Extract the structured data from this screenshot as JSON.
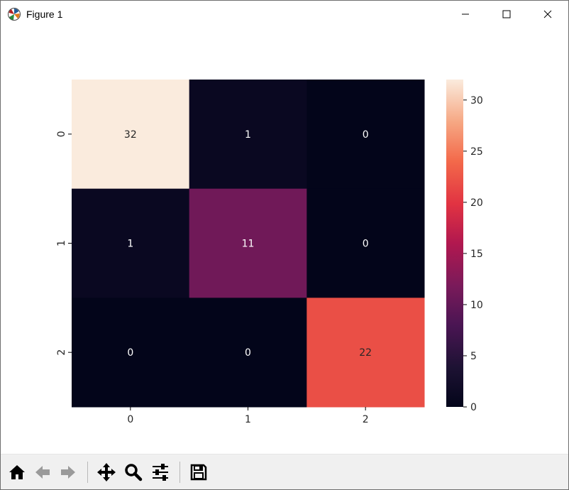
{
  "window": {
    "title": "Figure 1",
    "icon": "matplotlib-logo-icon",
    "controls": [
      "minimize-icon",
      "maximize-icon",
      "close-icon"
    ]
  },
  "toolbar": {
    "buttons": [
      {
        "name": "home-button",
        "icon": "home-icon"
      },
      {
        "name": "back-button",
        "icon": "arrow-left-icon"
      },
      {
        "name": "forward-button",
        "icon": "arrow-right-icon"
      },
      {
        "name": "pan-button",
        "icon": "move-icon"
      },
      {
        "name": "zoom-button",
        "icon": "magnifier-icon"
      },
      {
        "name": "configure-subplots-button",
        "icon": "sliders-icon"
      },
      {
        "name": "save-button",
        "icon": "floppy-disk-icon"
      }
    ]
  },
  "chart_data": {
    "type": "heatmap",
    "title": "",
    "xlabel": "",
    "ylabel": "",
    "x_categories": [
      "0",
      "1",
      "2"
    ],
    "y_categories": [
      "0",
      "1",
      "2"
    ],
    "values": [
      [
        32,
        1,
        0
      ],
      [
        1,
        11,
        0
      ],
      [
        0,
        0,
        22
      ]
    ],
    "annotations": [
      [
        "32",
        "1",
        "0"
      ],
      [
        "1",
        "11",
        "0"
      ],
      [
        "0",
        "0",
        "22"
      ]
    ],
    "colorbar": {
      "range": [
        0,
        32
      ],
      "ticks": [
        0,
        5,
        10,
        15,
        20,
        25,
        30
      ],
      "tick_labels": [
        "0",
        "5",
        "10",
        "15",
        "20",
        "25",
        "30"
      ],
      "colormap": "rocket"
    },
    "colors": {
      "low": "#03051a",
      "high": "#faebdd",
      "text_light": "#ffffff",
      "text_dark": "#262626"
    },
    "grid": false,
    "legend": "colorbar-right"
  }
}
